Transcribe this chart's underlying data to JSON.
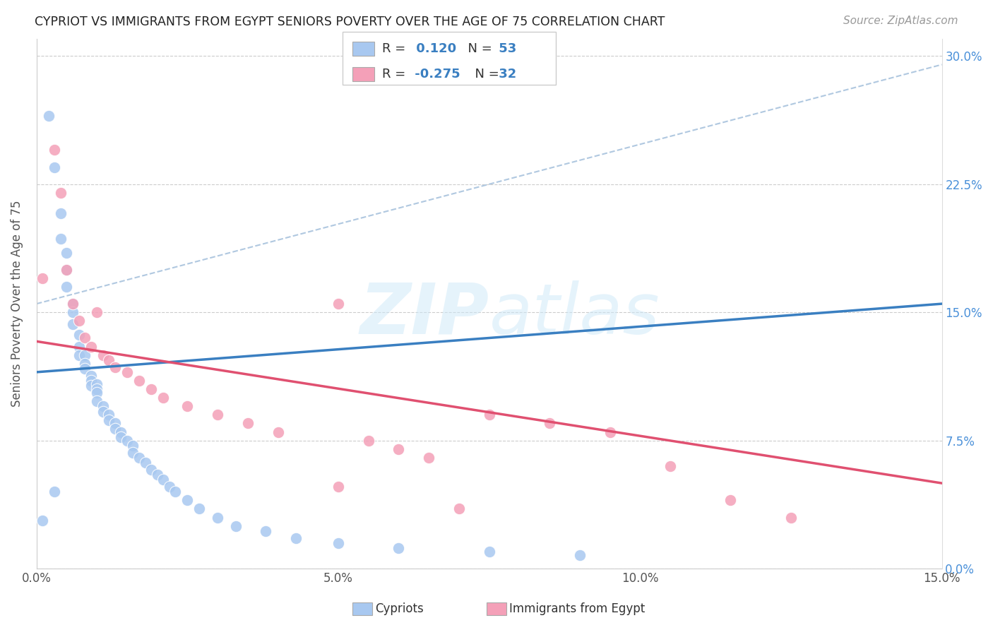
{
  "title": "CYPRIOT VS IMMIGRANTS FROM EGYPT SENIORS POVERTY OVER THE AGE OF 75 CORRELATION CHART",
  "source": "Source: ZipAtlas.com",
  "ylabel": "Seniors Poverty Over the Age of 75",
  "legend_label1": "Cypriots",
  "legend_label2": "Immigrants from Egypt",
  "R1": "0.120",
  "N1": "53",
  "R2": "-0.275",
  "N2": "32",
  "x_min": 0.0,
  "x_max": 0.15,
  "y_min": 0.0,
  "y_max": 0.31,
  "color_blue": "#a8c8f0",
  "color_pink": "#f4a0b8",
  "line_blue": "#3a7fc1",
  "line_pink": "#e05070",
  "background": "#ffffff",
  "cypriot_x": [
    0.001,
    0.002,
    0.003,
    0.004,
    0.004,
    0.005,
    0.005,
    0.005,
    0.006,
    0.006,
    0.006,
    0.007,
    0.007,
    0.007,
    0.008,
    0.008,
    0.008,
    0.009,
    0.009,
    0.009,
    0.01,
    0.01,
    0.01,
    0.01,
    0.011,
    0.011,
    0.012,
    0.012,
    0.013,
    0.013,
    0.014,
    0.014,
    0.015,
    0.016,
    0.016,
    0.017,
    0.018,
    0.019,
    0.02,
    0.021,
    0.022,
    0.023,
    0.025,
    0.027,
    0.03,
    0.033,
    0.038,
    0.043,
    0.05,
    0.06,
    0.075,
    0.09,
    0.003
  ],
  "cypriot_y": [
    0.028,
    0.265,
    0.235,
    0.208,
    0.193,
    0.185,
    0.175,
    0.165,
    0.155,
    0.15,
    0.143,
    0.137,
    0.13,
    0.125,
    0.125,
    0.12,
    0.117,
    0.113,
    0.11,
    0.107,
    0.108,
    0.105,
    0.103,
    0.098,
    0.095,
    0.092,
    0.09,
    0.087,
    0.085,
    0.082,
    0.08,
    0.077,
    0.075,
    0.072,
    0.068,
    0.065,
    0.062,
    0.058,
    0.055,
    0.052,
    0.048,
    0.045,
    0.04,
    0.035,
    0.03,
    0.025,
    0.022,
    0.018,
    0.015,
    0.012,
    0.01,
    0.008,
    0.045
  ],
  "egypt_x": [
    0.001,
    0.003,
    0.004,
    0.005,
    0.006,
    0.007,
    0.008,
    0.009,
    0.01,
    0.011,
    0.012,
    0.013,
    0.015,
    0.017,
    0.019,
    0.021,
    0.025,
    0.03,
    0.035,
    0.04,
    0.05,
    0.055,
    0.06,
    0.065,
    0.075,
    0.085,
    0.095,
    0.105,
    0.115,
    0.125,
    0.05,
    0.07
  ],
  "egypt_y": [
    0.17,
    0.245,
    0.22,
    0.175,
    0.155,
    0.145,
    0.135,
    0.13,
    0.15,
    0.125,
    0.122,
    0.118,
    0.115,
    0.11,
    0.105,
    0.1,
    0.095,
    0.09,
    0.085,
    0.08,
    0.155,
    0.075,
    0.07,
    0.065,
    0.09,
    0.085,
    0.08,
    0.06,
    0.04,
    0.03,
    0.048,
    0.035
  ],
  "blue_line_x": [
    0.0,
    0.15
  ],
  "blue_line_y": [
    0.115,
    0.155
  ],
  "pink_line_x": [
    0.0,
    0.15
  ],
  "pink_line_y": [
    0.133,
    0.05
  ],
  "dash_line_x": [
    0.0,
    0.15
  ],
  "dash_line_y": [
    0.155,
    0.295
  ]
}
